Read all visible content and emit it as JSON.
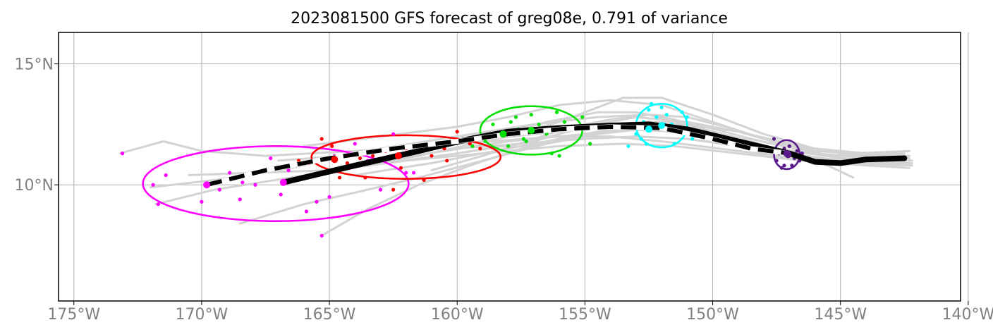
{
  "chart_data": {
    "type": "line",
    "title": "2023081500 GFS forecast of greg08e, 0.791 of variance",
    "xlim": [
      -175.6,
      -140.3
    ],
    "ylim": [
      5.2,
      16.3
    ],
    "x_ticks": [
      -175,
      -170,
      -165,
      -160,
      -155,
      -150,
      -145,
      -140
    ],
    "x_tick_labels": [
      "175°W",
      "170°W",
      "165°W",
      "160°W",
      "155°W",
      "150°W",
      "145°W",
      "140°W"
    ],
    "y_ticks": [
      10,
      15
    ],
    "y_tick_labels": [
      "10°N",
      "15°N"
    ],
    "grid": true,
    "colors": {
      "ensemble": "#d3d3d3",
      "mean": "#000000",
      "dashed_track": "#000000",
      "clusters": [
        "#ff00ff",
        "#ff0000",
        "#00e000",
        "#00ffff",
        "#5b1a8b"
      ]
    },
    "series": [
      {
        "style": "thick-solid-black",
        "x": [
          -166.8,
          -164.0,
          -161.5,
          -159.5,
          -158.0,
          -156.0,
          -154.0,
          -152.5,
          -151.0,
          -149.0,
          -147.0,
          -146.0,
          -145.0,
          -144.0,
          -142.5
        ],
        "y": [
          10.1,
          10.8,
          11.4,
          11.9,
          12.2,
          12.35,
          12.45,
          12.5,
          12.3,
          11.8,
          11.3,
          10.95,
          10.9,
          11.05,
          11.1
        ]
      },
      {
        "style": "dashed-black",
        "x": [
          -169.8,
          -167.5,
          -165.0,
          -162.5,
          -160.0,
          -158.0,
          -156.0,
          -154.0,
          -152.0,
          -150.0,
          -148.5,
          -147.0
        ],
        "y": [
          10.0,
          10.6,
          11.1,
          11.5,
          11.8,
          12.1,
          12.3,
          12.4,
          12.35,
          11.9,
          11.5,
          11.3
        ]
      }
    ],
    "ensemble_tracks": [
      {
        "x": [
          -173.2,
          -171.5,
          -170.0,
          -167.5,
          -164.0,
          -160.0,
          -156.0,
          -154.0,
          -152.5,
          -149.5,
          -147.0,
          -145.0,
          -142.5
        ],
        "y": [
          11.3,
          11.8,
          11.4,
          11.2,
          11.4,
          11.7,
          12.0,
          12.2,
          12.3,
          11.9,
          11.4,
          11.2,
          11.2
        ]
      },
      {
        "x": [
          -171.8,
          -169.5,
          -166.5,
          -163.5,
          -160.0,
          -157.0,
          -155.0,
          -153.0,
          -151.0,
          -148.5,
          -146.0,
          -142.5
        ],
        "y": [
          9.2,
          9.8,
          10.3,
          10.8,
          11.3,
          11.8,
          12.4,
          12.8,
          12.6,
          11.9,
          11.3,
          11.0
        ]
      },
      {
        "x": [
          -168.5,
          -166.0,
          -163.5,
          -161.5,
          -159.0,
          -156.5,
          -154.5,
          -152.0,
          -149.5,
          -147.0,
          -145.0,
          -142.3
        ],
        "y": [
          8.4,
          9.2,
          9.8,
          10.3,
          11.0,
          11.7,
          12.1,
          12.4,
          12.0,
          11.3,
          11.0,
          10.9
        ]
      },
      {
        "x": [
          -165.3,
          -163.5,
          -161.5,
          -159.5,
          -157.5,
          -155.5,
          -153.5,
          -151.5,
          -149.5,
          -147.5,
          -145.0,
          -142.2
        ],
        "y": [
          7.9,
          9.0,
          10.0,
          10.8,
          11.5,
          12.0,
          12.3,
          12.2,
          11.7,
          11.2,
          10.9,
          10.8
        ]
      },
      {
        "x": [
          -166.0,
          -163.0,
          -160.0,
          -158.0,
          -156.0,
          -154.0,
          -152.0,
          -150.0,
          -148.0,
          -146.0,
          -144.0,
          -142.5
        ],
        "y": [
          11.6,
          12.0,
          12.4,
          12.8,
          13.3,
          13.5,
          13.3,
          12.6,
          11.9,
          11.5,
          11.3,
          11.3
        ]
      },
      {
        "x": [
          -164.5,
          -161.5,
          -158.5,
          -156.0,
          -154.5,
          -153.5,
          -152.0,
          -150.0,
          -148.0,
          -146.0,
          -144.0,
          -142.3
        ],
        "y": [
          10.7,
          11.2,
          11.9,
          12.6,
          13.2,
          13.6,
          13.6,
          12.9,
          12.1,
          11.5,
          11.2,
          11.1
        ]
      },
      {
        "x": [
          -170.5,
          -168.0,
          -165.0,
          -162.0,
          -159.0,
          -156.0,
          -153.5,
          -151.5,
          -149.0,
          -146.5,
          -144.0,
          -142.3
        ],
        "y": [
          10.4,
          10.5,
          10.6,
          11.0,
          11.3,
          11.6,
          11.7,
          11.6,
          11.3,
          11.0,
          10.8,
          10.7
        ]
      },
      {
        "x": [
          -172.0,
          -169.5,
          -166.5,
          -163.0,
          -160.0,
          -157.0,
          -154.5,
          -152.5,
          -150.0,
          -147.5,
          -145.0,
          -142.2
        ],
        "y": [
          9.9,
          10.2,
          10.7,
          11.5,
          12.0,
          12.5,
          12.8,
          12.9,
          12.2,
          11.5,
          11.1,
          11.0
        ]
      },
      {
        "x": [
          -163.0,
          -160.5,
          -158.0,
          -156.0,
          -154.0,
          -152.0,
          -150.5,
          -149.0,
          -147.5,
          -146.0,
          -144.0,
          -142.2
        ],
        "y": [
          11.0,
          11.4,
          11.8,
          12.0,
          12.0,
          11.8,
          11.6,
          11.4,
          11.2,
          11.0,
          10.9,
          10.9
        ]
      },
      {
        "x": [
          -164.0,
          -161.0,
          -158.5,
          -156.5,
          -154.5,
          -152.5,
          -151.0,
          -149.0,
          -147.0,
          -145.0,
          -142.5
        ],
        "y": [
          10.4,
          10.9,
          11.4,
          11.8,
          12.2,
          12.6,
          12.6,
          12.2,
          11.6,
          11.1,
          11.0
        ]
      },
      {
        "x": [
          -167.0,
          -164.5,
          -162.0,
          -159.5,
          -157.0,
          -155.0,
          -153.0,
          -151.0,
          -149.0,
          -147.0,
          -145.0,
          -142.3
        ],
        "y": [
          11.0,
          11.2,
          11.5,
          11.8,
          12.1,
          12.3,
          12.5,
          12.5,
          12.2,
          11.7,
          11.3,
          11.2
        ]
      },
      {
        "x": [
          -161.0,
          -159.0,
          -157.0,
          -155.5,
          -154.0,
          -152.5,
          -151.0,
          -149.5,
          -148.0,
          -146.0,
          -144.5,
          -142.3
        ],
        "y": [
          10.6,
          11.2,
          11.9,
          12.4,
          12.7,
          12.9,
          12.8,
          12.4,
          11.9,
          11.4,
          11.3,
          11.4
        ]
      },
      {
        "x": [
          -158.5,
          -156.5,
          -154.5,
          -153.0,
          -151.5,
          -150.0,
          -148.5,
          -147.0,
          -145.5,
          -144.5
        ],
        "y": [
          12.0,
          12.6,
          13.0,
          13.0,
          12.7,
          12.2,
          11.8,
          11.3,
          10.8,
          10.3
        ]
      },
      {
        "x": [
          -160.0,
          -157.5,
          -155.0,
          -153.0,
          -151.0,
          -149.0,
          -147.5,
          -146.0,
          -144.5,
          -142.5
        ],
        "y": [
          11.5,
          11.7,
          11.9,
          12.0,
          11.9,
          11.6,
          11.3,
          11.1,
          11.0,
          11.0
        ]
      }
    ],
    "clusters": [
      {
        "color": "#ff00ff",
        "center": [
          -169.8,
          10.0
        ],
        "mean_point": [
          -166.8,
          10.1
        ],
        "ellipse": {
          "cx": -167.1,
          "cy": 10.05,
          "rx": 5.2,
          "ry": 1.55
        },
        "points": [
          [
            -173.1,
            11.3
          ],
          [
            -171.9,
            10.0
          ],
          [
            -171.4,
            10.4
          ],
          [
            -171.7,
            9.2
          ],
          [
            -170.0,
            9.3
          ],
          [
            -169.3,
            9.8
          ],
          [
            -168.9,
            10.5
          ],
          [
            -168.4,
            10.1
          ],
          [
            -168.5,
            9.4
          ],
          [
            -167.9,
            10.0
          ],
          [
            -167.3,
            11.1
          ],
          [
            -166.9,
            9.6
          ],
          [
            -166.1,
            10.9
          ],
          [
            -165.9,
            8.9
          ],
          [
            -165.5,
            9.3
          ],
          [
            -165.0,
            9.5
          ],
          [
            -165.3,
            7.9
          ],
          [
            -164.0,
            11.7
          ],
          [
            -163.5,
            11.0
          ],
          [
            -163.0,
            9.8
          ],
          [
            -162.5,
            12.1
          ],
          [
            -164.8,
            11.2
          ],
          [
            -162.0,
            10.5
          ],
          [
            -161.7,
            10.5
          ],
          [
            -166.6,
            10.6
          ]
        ]
      },
      {
        "color": "#ff0000",
        "center": [
          -164.8,
          11.05
        ],
        "mean_point": [
          -162.3,
          11.2
        ],
        "ellipse": {
          "cx": -162.0,
          "cy": 11.15,
          "rx": 3.7,
          "ry": 0.9
        },
        "points": [
          [
            -165.3,
            11.9
          ],
          [
            -164.9,
            11.6
          ],
          [
            -164.3,
            10.9
          ],
          [
            -163.8,
            11.1
          ],
          [
            -163.5,
            10.9
          ],
          [
            -163.3,
            11.2
          ],
          [
            -163.1,
            11.0
          ],
          [
            -162.8,
            11.4
          ],
          [
            -162.4,
            11.2
          ],
          [
            -162.0,
            11.5
          ],
          [
            -161.5,
            11.4
          ],
          [
            -161.0,
            11.2
          ],
          [
            -160.5,
            11.5
          ],
          [
            -160.0,
            11.8
          ],
          [
            -159.5,
            11.7
          ],
          [
            -159.1,
            11.5
          ],
          [
            -160.4,
            11.0
          ],
          [
            -161.3,
            10.2
          ],
          [
            -162.5,
            9.8
          ],
          [
            -162.2,
            10.7
          ],
          [
            -166.2,
            11.0
          ],
          [
            -164.6,
            10.3
          ],
          [
            -163.6,
            10.3
          ],
          [
            -160.0,
            12.2
          ],
          [
            -165.8,
            10.9
          ]
        ]
      },
      {
        "color": "#00e000",
        "center": [
          -158.2,
          12.1
        ],
        "mean_point": [
          -157.1,
          12.25
        ],
        "ellipse": {
          "cx": -157.1,
          "cy": 12.25,
          "rx": 2.0,
          "ry": 1.0
        },
        "points": [
          [
            -159.4,
            11.6
          ],
          [
            -159.0,
            12.0
          ],
          [
            -158.6,
            12.5
          ],
          [
            -158.3,
            12.1
          ],
          [
            -158.0,
            11.6
          ],
          [
            -157.7,
            12.8
          ],
          [
            -157.4,
            11.9
          ],
          [
            -157.1,
            12.9
          ],
          [
            -156.8,
            12.5
          ],
          [
            -156.5,
            12.1
          ],
          [
            -156.1,
            13.0
          ],
          [
            -155.8,
            12.6
          ],
          [
            -156.0,
            11.2
          ],
          [
            -156.3,
            11.3
          ],
          [
            -157.3,
            11.8
          ],
          [
            -155.5,
            12.3
          ],
          [
            -157.6,
            12.3
          ],
          [
            -158.9,
            11.8
          ],
          [
            -154.8,
            11.7
          ],
          [
            -155.1,
            12.8
          ],
          [
            -157.9,
            12.6
          ]
        ]
      },
      {
        "color": "#00ffff",
        "center": [
          -152.5,
          12.3
        ],
        "mean_point": [
          -152.0,
          12.45
        ],
        "ellipse": {
          "cx": -152.0,
          "cy": 12.45,
          "rx": 1.0,
          "ry": 0.9
        },
        "points": [
          [
            -153.0,
            12.1
          ],
          [
            -152.7,
            12.6
          ],
          [
            -152.5,
            13.1
          ],
          [
            -152.2,
            12.8
          ],
          [
            -152.0,
            13.2
          ],
          [
            -151.8,
            12.9
          ],
          [
            -151.6,
            12.5
          ],
          [
            -151.3,
            12.2
          ],
          [
            -151.0,
            12.8
          ],
          [
            -152.8,
            11.9
          ],
          [
            -151.5,
            11.7
          ],
          [
            -152.3,
            12.4
          ],
          [
            -151.9,
            12.5
          ],
          [
            -152.4,
            13.35
          ],
          [
            -151.2,
            13.0
          ],
          [
            -153.3,
            11.6
          ],
          [
            -150.8,
            11.9
          ],
          [
            -152.6,
            11.7
          ]
        ]
      },
      {
        "color": "#5b1a8b",
        "center": [
          -147.1,
          11.3
        ],
        "mean_point": [
          -147.05,
          11.25
        ],
        "ellipse": {
          "cx": -147.1,
          "cy": 11.25,
          "rx": 0.5,
          "ry": 0.6
        },
        "points": [
          [
            -147.7,
            11.5
          ],
          [
            -147.5,
            11.0
          ],
          [
            -147.4,
            11.3
          ],
          [
            -147.2,
            10.8
          ],
          [
            -147.0,
            11.6
          ],
          [
            -146.8,
            11.1
          ],
          [
            -146.7,
            11.4
          ],
          [
            -146.6,
            11.0
          ],
          [
            -147.3,
            10.7
          ],
          [
            -146.9,
            10.8
          ],
          [
            -147.6,
            11.9
          ],
          [
            -147.2,
            11.5
          ],
          [
            -146.5,
            11.3
          ]
        ]
      }
    ]
  }
}
